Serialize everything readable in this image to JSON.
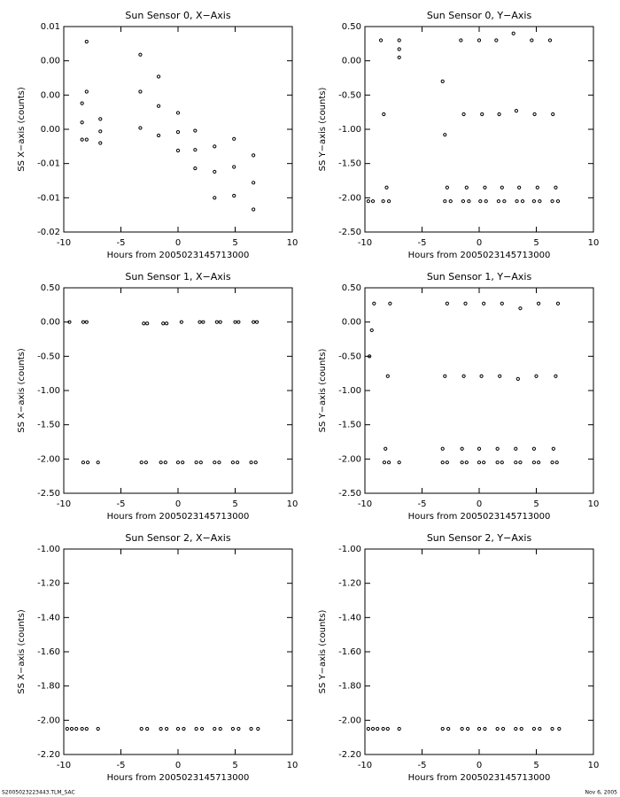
{
  "chart_data": [
    {
      "type": "scatter",
      "title": "Sun Sensor 0, X−Axis",
      "xlabel": "Hours from 2005023145713000",
      "ylabel": "SS X−axis (counts)",
      "color": "#000000",
      "xlim": [
        -10,
        10
      ],
      "xticks": [
        -10,
        -5,
        0,
        5,
        10
      ],
      "ylim": [
        -0.02,
        0.01
      ],
      "yticks": [
        0.01,
        {
          "value": 0.005,
          "label": "0.00"
        },
        {
          "value": 0,
          "label": "0.00"
        },
        {
          "value": -0.005,
          "label": "0.00"
        },
        {
          "value": -0.01,
          "label": "-0.01"
        },
        {
          "value": -0.015,
          "label": "-0.01"
        },
        {
          "value": -0.02,
          "label": "-0.02"
        }
      ],
      "series": [
        {
          "x": [
            -8.4,
            -8.4,
            -8.4,
            -8.0,
            -8.0,
            -8.0,
            -6.8,
            -6.8,
            -6.8,
            -3.3,
            -3.3,
            -3.3,
            -1.7,
            -1.7,
            -1.7,
            0,
            0,
            0,
            1.5,
            1.5,
            1.5,
            3.2,
            3.2,
            3.2,
            4.9,
            4.9,
            4.9,
            6.6,
            6.6,
            6.6
          ],
          "y": [
            -0.0012,
            -0.004,
            -0.0065,
            0.0078,
            0.0005,
            -0.0065,
            -0.0035,
            -0.0053,
            -0.007,
            0.0059,
            0.0005,
            -0.0048,
            0.0027,
            -0.0016,
            -0.0059,
            -0.0026,
            -0.0054,
            -0.0081,
            -0.0052,
            -0.008,
            -0.0107,
            -0.0075,
            -0.0112,
            -0.015,
            -0.0064,
            -0.0105,
            -0.0147,
            -0.0088,
            -0.0128,
            -0.0167
          ]
        }
      ]
    },
    {
      "type": "scatter",
      "title": "Sun Sensor 0, Y−Axis",
      "xlabel": "Hours from 2005023145713000",
      "ylabel": "SS Y−axis (counts)",
      "color": "#000000",
      "xlim": [
        -10,
        10
      ],
      "xticks": [
        -10,
        -5,
        0,
        5,
        10
      ],
      "ylim": [
        -2.5,
        0.5
      ],
      "yticks": [
        {
          "value": 0.5,
          "label": "0.50"
        },
        {
          "value": 0,
          "label": "0.00"
        },
        {
          "value": -0.5,
          "label": "-0.50"
        },
        {
          "value": -1,
          "label": "-1.00"
        },
        {
          "value": -1.5,
          "label": "-1.50"
        },
        {
          "value": -2,
          "label": "-2.00"
        },
        {
          "value": -2.5,
          "label": "-2.50"
        }
      ],
      "series": [
        {
          "x": [
            -8.6,
            -8.35,
            -8.1,
            -7.0,
            -7.0,
            -7.0,
            -3.2,
            -3.0,
            -2.8,
            -1.6,
            -1.35,
            -1.1,
            0,
            0.25,
            0.5,
            1.5,
            1.75,
            2,
            3,
            3.25,
            3.5,
            4.6,
            4.85,
            5.1,
            6.2,
            6.45,
            6.7,
            -9.7,
            -9.3,
            -8.4,
            -7.9,
            -3.0,
            -2.5,
            -1.4,
            -0.9,
            0.1,
            0.6,
            1.7,
            2.2,
            3.3,
            3.8,
            4.8,
            5.3,
            6.4,
            6.9
          ],
          "y": [
            0.3,
            -0.78,
            -1.85,
            0.3,
            0.17,
            0.05,
            -0.3,
            -1.08,
            -1.85,
            0.3,
            -0.78,
            -1.85,
            0.3,
            -0.78,
            -1.85,
            0.3,
            -0.78,
            -1.85,
            0.4,
            -0.73,
            -1.85,
            0.3,
            -0.78,
            -1.85,
            0.3,
            -0.78,
            -1.85,
            -2.05,
            -2.05,
            -2.05,
            -2.05,
            -2.05,
            -2.05,
            -2.05,
            -2.05,
            -2.05,
            -2.05,
            -2.05,
            -2.05,
            -2.05,
            -2.05,
            -2.05,
            -2.05,
            -2.05,
            -2.05
          ]
        }
      ]
    },
    {
      "type": "scatter",
      "title": "Sun Sensor 1, X−Axis",
      "xlabel": "Hours from 2005023145713000",
      "ylabel": "SS X−axis (counts)",
      "color": "#000000",
      "xlim": [
        -10,
        10
      ],
      "xticks": [
        -10,
        -5,
        0,
        5,
        10
      ],
      "ylim": [
        -2.5,
        0.5
      ],
      "yticks": [
        {
          "value": 0.5,
          "label": "0.50"
        },
        {
          "value": 0,
          "label": "0.00"
        },
        {
          "value": -0.5,
          "label": "-0.50"
        },
        {
          "value": -1,
          "label": "-1.00"
        },
        {
          "value": -1.5,
          "label": "-1.50"
        },
        {
          "value": -2,
          "label": "-2.00"
        },
        {
          "value": -2.5,
          "label": "-2.50"
        }
      ],
      "series": [
        {
          "x": [
            -9.5,
            -8.3,
            -8.0,
            -3.0,
            -2.7,
            -1.3,
            -1.0,
            0.3,
            1.9,
            2.2,
            3.4,
            3.7,
            5.0,
            5.3,
            6.6,
            6.9,
            -8.3,
            -7.9,
            -7.0,
            -3.2,
            -2.8,
            -1.5,
            -1.1,
            0,
            0.4,
            1.6,
            2.0,
            3.2,
            3.6,
            4.8,
            5.2,
            6.4,
            6.8
          ],
          "y": [
            0,
            0,
            0,
            -0.02,
            -0.02,
            -0.02,
            -0.02,
            0,
            0,
            0,
            0,
            0,
            0,
            0,
            0,
            0,
            -2.05,
            -2.05,
            -2.05,
            -2.05,
            -2.05,
            -2.05,
            -2.05,
            -2.05,
            -2.05,
            -2.05,
            -2.05,
            -2.05,
            -2.05,
            -2.05,
            -2.05,
            -2.05,
            -2.05
          ]
        }
      ]
    },
    {
      "type": "scatter",
      "title": "Sun Sensor 1, Y−Axis",
      "xlabel": "Hours from 2005023145713000",
      "ylabel": "SS Y−axis (counts)",
      "color": "#000000",
      "xlim": [
        -10,
        10
      ],
      "xticks": [
        -10,
        -5,
        0,
        5,
        10
      ],
      "ylim": [
        -2.5,
        0.5
      ],
      "yticks": [
        {
          "value": 0.5,
          "label": "0.50"
        },
        {
          "value": 0,
          "label": "0.00"
        },
        {
          "value": -0.5,
          "label": "-0.50"
        },
        {
          "value": -1,
          "label": "-1.00"
        },
        {
          "value": -1.5,
          "label": "-1.50"
        },
        {
          "value": -2,
          "label": "-2.00"
        },
        {
          "value": -2.5,
          "label": "-2.50"
        }
      ],
      "series": [
        {
          "x": [
            -9.2,
            -9.4,
            -9.6,
            -7.8,
            -8.0,
            -8.2,
            -2.8,
            -3.0,
            -3.2,
            -1.2,
            -1.35,
            -1.5,
            0.4,
            0.2,
            0,
            2,
            1.8,
            1.6,
            3.6,
            3.4,
            3.2,
            5.2,
            5.0,
            4.8,
            6.9,
            6.7,
            6.5,
            -8.3,
            -7.9,
            -7.0,
            -3.2,
            -2.8,
            -1.5,
            -1.1,
            0,
            0.4,
            1.6,
            2.0,
            3.2,
            3.6,
            4.8,
            5.2,
            6.4,
            6.8
          ],
          "y": [
            0.27,
            -0.12,
            -0.5,
            0.27,
            -0.79,
            -1.85,
            0.27,
            -0.79,
            -1.85,
            0.27,
            -0.79,
            -1.85,
            0.27,
            -0.79,
            -1.85,
            0.27,
            -0.79,
            -1.85,
            0.2,
            -0.83,
            -1.85,
            0.27,
            -0.79,
            -1.85,
            0.27,
            -0.79,
            -1.85,
            -2.05,
            -2.05,
            -2.05,
            -2.05,
            -2.05,
            -2.05,
            -2.05,
            -2.05,
            -2.05,
            -2.05,
            -2.05,
            -2.05,
            -2.05,
            -2.05,
            -2.05,
            -2.05,
            -2.05
          ]
        }
      ]
    },
    {
      "type": "scatter",
      "title": "Sun Sensor 2, X−Axis",
      "xlabel": "Hours from 2005023145713000",
      "ylabel": "SS X−axis (counts)",
      "color": "#000000",
      "xlim": [
        -10,
        10
      ],
      "xticks": [
        -10,
        -5,
        0,
        5,
        10
      ],
      "ylim": [
        -2.2,
        -1.0
      ],
      "yticks": [
        {
          "value": -1.0,
          "label": "-1.00"
        },
        {
          "value": -1.2,
          "label": "-1.20"
        },
        {
          "value": -1.4,
          "label": "-1.40"
        },
        {
          "value": -1.6,
          "label": "-1.60"
        },
        {
          "value": -1.8,
          "label": "-1.80"
        },
        {
          "value": -2.0,
          "label": "-2.00"
        },
        {
          "value": -2.2,
          "label": "-2.20"
        }
      ],
      "series": [
        {
          "x": [
            -9.7,
            -9.3,
            -8.9,
            -8.4,
            -8.0,
            -7.0,
            -3.2,
            -2.7,
            -1.5,
            -1.0,
            0,
            0.5,
            1.6,
            2.1,
            3.2,
            3.7,
            4.8,
            5.3,
            6.4,
            7.0
          ],
          "y": [
            -2.05,
            -2.05,
            -2.05,
            -2.05,
            -2.05,
            -2.05,
            -2.05,
            -2.05,
            -2.05,
            -2.05,
            -2.05,
            -2.05,
            -2.05,
            -2.05,
            -2.05,
            -2.05,
            -2.05,
            -2.05,
            -2.05,
            -2.05
          ]
        }
      ]
    },
    {
      "type": "scatter",
      "title": "Sun Sensor 2, Y−Axis",
      "xlabel": "Hours from 2005023145713000",
      "ylabel": "SS Y−axis (counts)",
      "color": "#000000",
      "xlim": [
        -10,
        10
      ],
      "xticks": [
        -10,
        -5,
        0,
        5,
        10
      ],
      "ylim": [
        -2.2,
        -1.0
      ],
      "yticks": [
        {
          "value": -1.0,
          "label": "-1.00"
        },
        {
          "value": -1.2,
          "label": "-1.20"
        },
        {
          "value": -1.4,
          "label": "-1.40"
        },
        {
          "value": -1.6,
          "label": "-1.60"
        },
        {
          "value": -1.8,
          "label": "-1.80"
        },
        {
          "value": -2.0,
          "label": "-2.00"
        },
        {
          "value": -2.2,
          "label": "-2.20"
        }
      ],
      "series": [
        {
          "x": [
            -9.7,
            -9.3,
            -8.9,
            -8.4,
            -8.0,
            -7.0,
            -3.2,
            -2.7,
            -1.5,
            -1.0,
            0,
            0.5,
            1.6,
            2.1,
            3.2,
            3.7,
            4.8,
            5.3,
            6.4,
            7.0
          ],
          "y": [
            -2.05,
            -2.05,
            -2.05,
            -2.05,
            -2.05,
            -2.05,
            -2.05,
            -2.05,
            -2.05,
            -2.05,
            -2.05,
            -2.05,
            -2.05,
            -2.05,
            -2.05,
            -2.05,
            -2.05,
            -2.05,
            -2.05,
            -2.05
          ]
        }
      ]
    }
  ],
  "footer": {
    "left": "S2005023223443.TLM_SAC",
    "right": "Nov  6, 2005"
  }
}
